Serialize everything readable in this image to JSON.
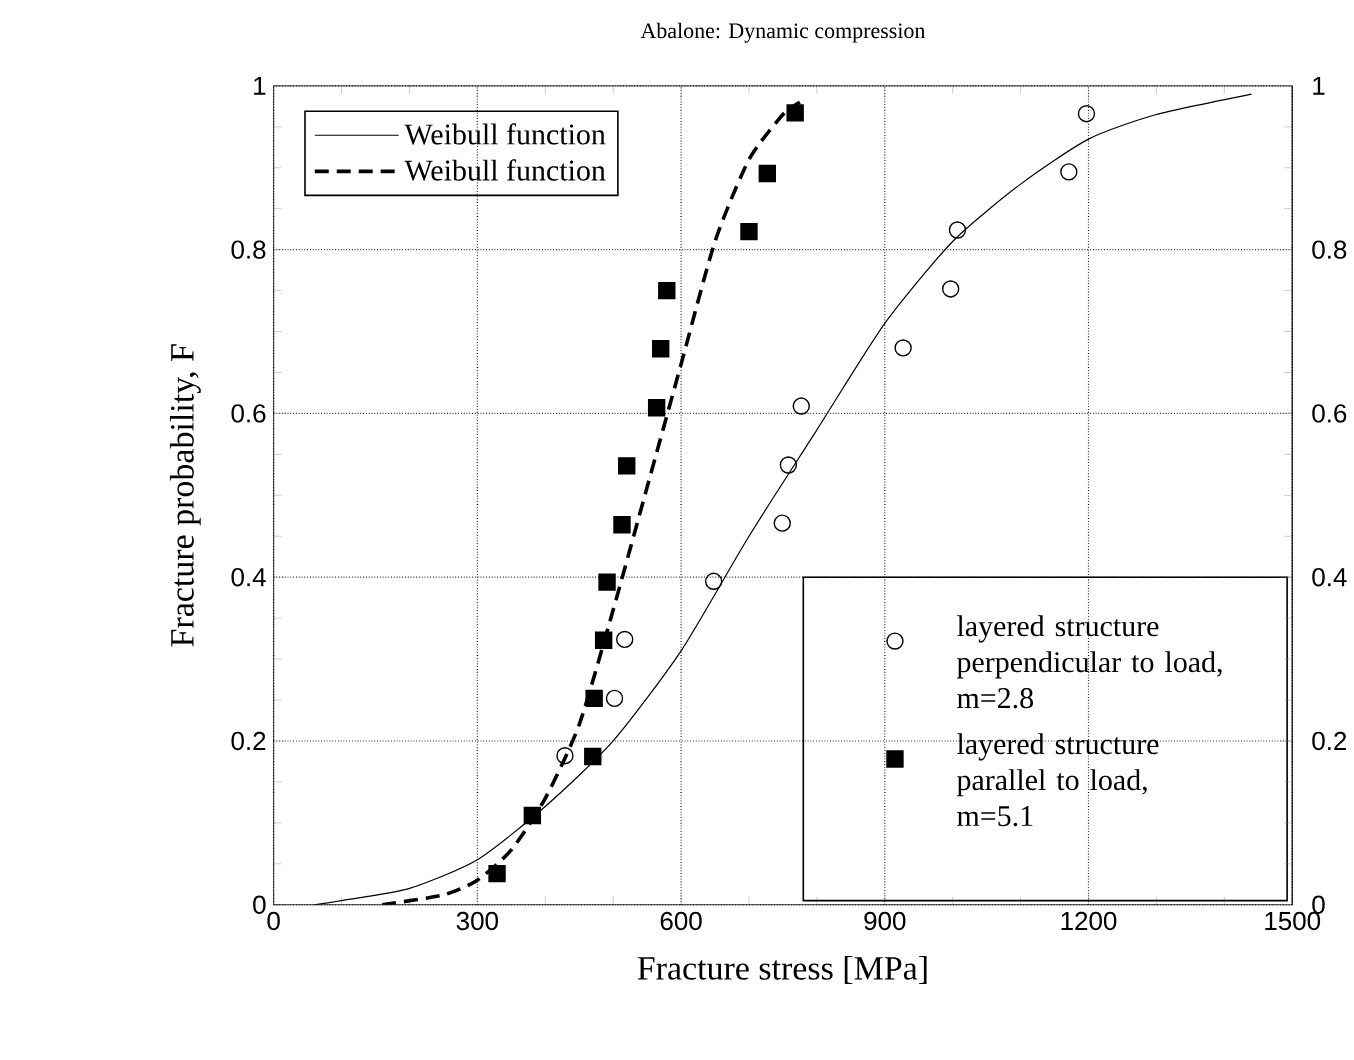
{
  "chart_data": {
    "type": "scatter",
    "title": "Abalone: Dynamic compression",
    "xlabel": "Fracture stress [MPa]",
    "ylabel": "Fracture probability, F",
    "xlim": [
      0,
      1500
    ],
    "xticks": [
      0,
      300,
      600,
      900,
      1200,
      1500
    ],
    "ylim": [
      0,
      1
    ],
    "yticks": [
      0,
      0.2,
      0.4,
      0.6,
      0.8,
      1
    ],
    "y2lim": [
      0,
      1
    ],
    "y2ticks": [
      0,
      0.2,
      0.4,
      0.6,
      0.8,
      1
    ],
    "grid": true,
    "legend": "top left",
    "series": [
      {
        "name": "Weibull function",
        "type": "line",
        "line_style": "solid",
        "marker": "none",
        "color": "#000000",
        "x": [
          60,
          100,
          200,
          300,
          400,
          500,
          600,
          700,
          800,
          900,
          1000,
          1100,
          1200,
          1300,
          1440
        ],
        "values": [
          0,
          0.005,
          0.02,
          0.055,
          0.12,
          0.2,
          0.31,
          0.45,
          0.58,
          0.71,
          0.81,
          0.88,
          0.935,
          0.965,
          0.99
        ]
      },
      {
        "name": "Weibull function",
        "type": "line",
        "line_style": "dashed",
        "marker": "none",
        "color": "#000000",
        "x": [
          160,
          250,
          300,
          350,
          400,
          450,
          500,
          550,
          600,
          650,
          700,
          750,
          775
        ],
        "values": [
          0,
          0.012,
          0.03,
          0.067,
          0.13,
          0.22,
          0.36,
          0.51,
          0.66,
          0.81,
          0.91,
          0.965,
          0.98
        ]
      },
      {
        "name": "layered structure perpendicular to load, m=2.8",
        "marker": "circle",
        "color": "#000000",
        "x": [
          429,
          502,
          517,
          648,
          749,
          758,
          777,
          927,
          997,
          1007,
          1171,
          1197
        ],
        "values": [
          0.182,
          0.252,
          0.324,
          0.395,
          0.466,
          0.537,
          0.609,
          0.68,
          0.752,
          0.824,
          0.895,
          0.966
        ]
      },
      {
        "name": "layered structure parallel to load, m=5.1",
        "marker": "square",
        "color": "#000000",
        "x": [
          329,
          381,
          470,
          472,
          486,
          491,
          513,
          520,
          564,
          570,
          579,
          700,
          727,
          768
        ],
        "values": [
          0.038,
          0.109,
          0.181,
          0.252,
          0.323,
          0.394,
          0.464,
          0.536,
          0.607,
          0.679,
          0.75,
          0.822,
          0.893,
          0.967
        ]
      }
    ]
  }
}
